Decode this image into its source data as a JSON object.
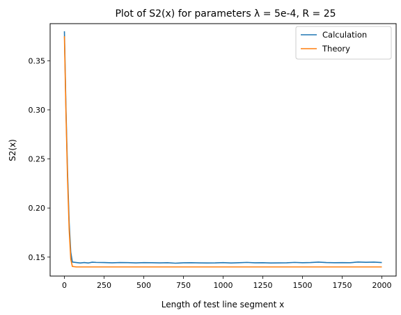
{
  "chart_data": {
    "type": "line",
    "title": "Plot of S2(x) for parameters λ = 5e-4, R = 25",
    "xlabel": "Length of test line segment x",
    "ylabel": "S2(x)",
    "xlim": [
      -90,
      2090
    ],
    "ylim": [
      0.1307,
      0.3878
    ],
    "xticks": [
      0,
      250,
      500,
      750,
      1000,
      1250,
      1500,
      1750,
      2000
    ],
    "xtick_labels": [
      "0",
      "250",
      "500",
      "750",
      "1000",
      "1250",
      "1500",
      "1750",
      "2000"
    ],
    "yticks": [
      0.15,
      0.2,
      0.25,
      0.3,
      0.35
    ],
    "ytick_labels": [
      "0.15",
      "0.20",
      "0.25",
      "0.30",
      "0.35"
    ],
    "grid": false,
    "legend_position": "top-right",
    "series": [
      {
        "name": "Calculation",
        "color": "#1f77b4",
        "x": [
          0,
          10,
          20,
          30,
          40,
          50,
          75,
          100,
          125,
          150,
          175,
          200,
          250,
          300,
          350,
          400,
          450,
          500,
          550,
          600,
          650,
          700,
          750,
          800,
          850,
          900,
          950,
          1000,
          1050,
          1100,
          1150,
          1200,
          1250,
          1300,
          1350,
          1400,
          1450,
          1500,
          1550,
          1600,
          1650,
          1700,
          1750,
          1800,
          1850,
          1900,
          1950,
          2000
        ],
        "values": [
          0.38,
          0.3,
          0.235,
          0.185,
          0.155,
          0.145,
          0.1445,
          0.144,
          0.1445,
          0.144,
          0.1448,
          0.1446,
          0.1445,
          0.1442,
          0.1445,
          0.1444,
          0.1441,
          0.1444,
          0.1443,
          0.1441,
          0.1443,
          0.1438,
          0.1442,
          0.1443,
          0.1441,
          0.144,
          0.1441,
          0.1444,
          0.144,
          0.1443,
          0.1446,
          0.1442,
          0.1443,
          0.144,
          0.1441,
          0.1442,
          0.1446,
          0.1443,
          0.1445,
          0.1449,
          0.1445,
          0.1443,
          0.1444,
          0.1443,
          0.145,
          0.1447,
          0.1449,
          0.1445
        ]
      },
      {
        "name": "Theory",
        "color": "#ff7f0e",
        "x": [
          0,
          10,
          20,
          30,
          40,
          50,
          75,
          100,
          500,
          1000,
          1500,
          2000
        ],
        "values": [
          0.375,
          0.295,
          0.228,
          0.178,
          0.148,
          0.1405,
          0.14,
          0.14,
          0.14,
          0.14,
          0.14,
          0.14
        ]
      }
    ]
  }
}
